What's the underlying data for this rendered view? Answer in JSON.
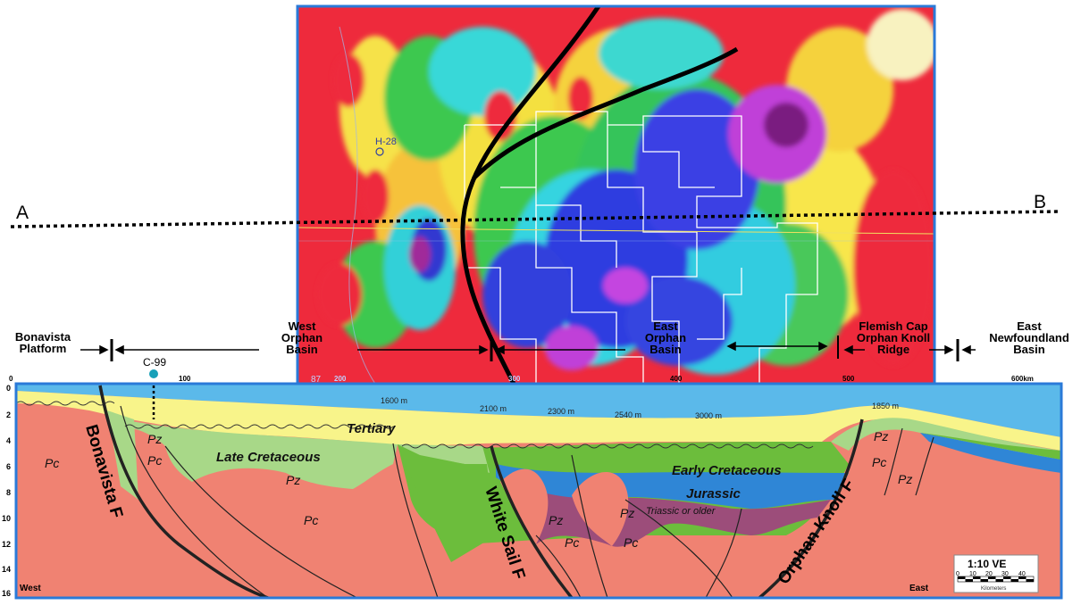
{
  "section_labels": {
    "a": "A",
    "b": "B"
  },
  "basins": {
    "bonavista": [
      "Bonavista",
      "Platform"
    ],
    "west_orphan": [
      "West",
      "Orphan",
      "Basin"
    ],
    "east_orphan": [
      "East",
      "Orphan",
      "Basin"
    ],
    "flemish": [
      "Flemish Cap",
      "Orphan Knoll",
      "Ridge"
    ],
    "east_newfoundland": [
      "East",
      "Newfoundland",
      "Basin"
    ]
  },
  "well": {
    "name": "C-99"
  },
  "map_well": "H-28",
  "map_number": "87",
  "distance_scale": [
    "0",
    "100",
    "200",
    "300",
    "400",
    "500",
    "600km"
  ],
  "depth_scale": [
    "0",
    "2",
    "4",
    "6",
    "8",
    "10",
    "12",
    "14",
    "16"
  ],
  "water_depths": [
    "1600 m",
    "2100 m",
    "2300 m",
    "2540 m",
    "3000 m",
    "1850 m"
  ],
  "units": {
    "tertiary": "Tertiary",
    "late_cretaceous": "Late Cretaceous",
    "early_cretaceous": "Early Cretaceous",
    "jurassic": "Jurassic",
    "triassic": "Triassic or older",
    "pc": "Pc",
    "pz": "Pz"
  },
  "faults": {
    "bonavista": "Bonavista F",
    "white_sail": "White Sail F",
    "orphan_knoll": "Orphan Knoll F"
  },
  "directions": {
    "west": "West",
    "east": "East"
  },
  "scale_box": {
    "ve": "1:10 VE",
    "ticks": [
      "0",
      "10",
      "20",
      "30",
      "40"
    ],
    "unit": "Kilometers"
  },
  "colors": {
    "water": "#5bb9ea",
    "tertiary": "#f8f48a",
    "late_cretaceous": "#a8d888",
    "early_cretaceous": "#6cbd3c",
    "jurassic": "#2f86d6",
    "triassic": "#9c4d7a",
    "basement": "#f08272",
    "frame": "#2a7ad8"
  }
}
